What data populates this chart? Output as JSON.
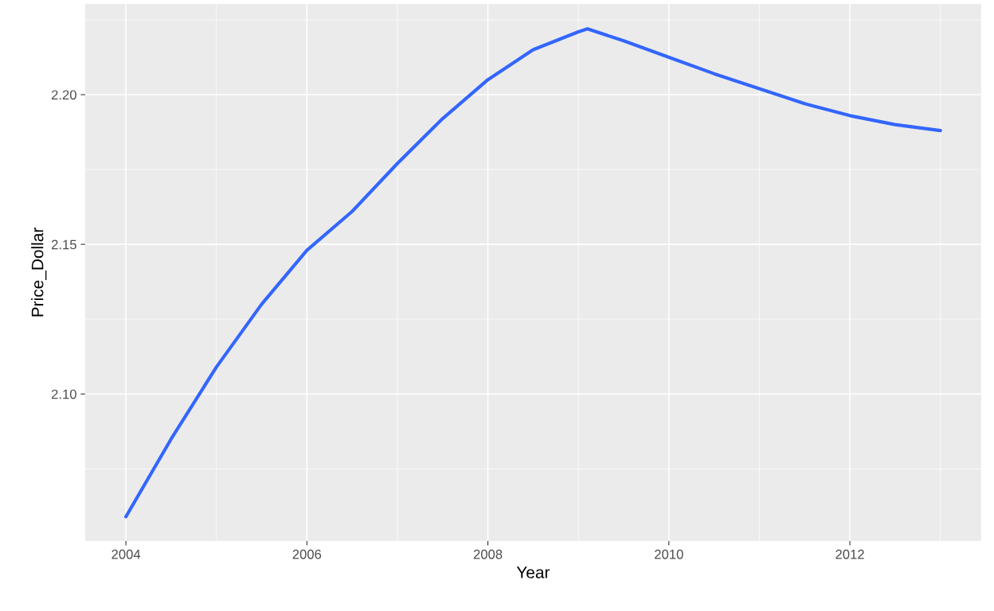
{
  "chart_data": {
    "type": "line",
    "xlabel": "Year",
    "ylabel": "Price_Dollar",
    "series": [
      {
        "color": "#3366ff",
        "x": [
          2004,
          2004.5,
          2005,
          2005.5,
          2006,
          2006.5,
          2007,
          2007.5,
          2008,
          2008.5,
          2009,
          2009.1,
          2009.5,
          2010,
          2010.5,
          2011,
          2011.5,
          2012,
          2012.5,
          2013
        ],
        "values": [
          2.059,
          2.085,
          2.109,
          2.13,
          2.148,
          2.161,
          2.177,
          2.192,
          2.205,
          2.215,
          2.221,
          2.222,
          2.218,
          2.2125,
          2.207,
          2.202,
          2.197,
          2.193,
          2.19,
          2.188
        ]
      }
    ],
    "xlim": [
      2003.55,
      2013.45
    ],
    "xticks": [
      2004,
      2006,
      2008,
      2010,
      2012
    ],
    "ylim": [
      2.0509,
      2.2303
    ],
    "yticks": [
      {
        "value": 2.1,
        "label": "2.10"
      },
      {
        "value": 2.15,
        "label": "2.15"
      },
      {
        "value": 2.2,
        "label": "2.20"
      }
    ],
    "grid": true,
    "marker": "none",
    "line_style": "solid"
  }
}
